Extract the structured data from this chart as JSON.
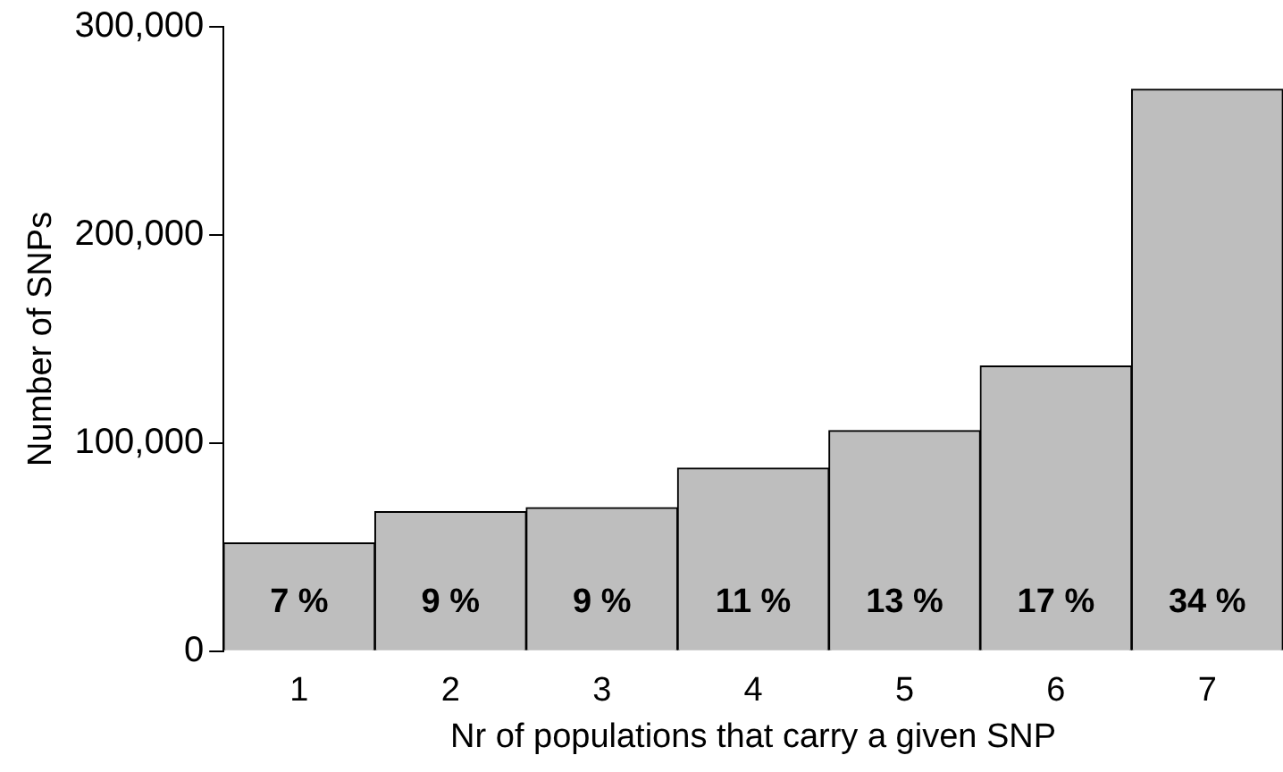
{
  "chart_data": {
    "type": "bar",
    "xlabel": "Nr of populations that carry a given SNP",
    "ylabel": "Number of SNPs",
    "categories": [
      "1",
      "2",
      "3",
      "4",
      "5",
      "6",
      "7"
    ],
    "values": [
      52000,
      67000,
      69000,
      88000,
      106000,
      137000,
      270000
    ],
    "annotations": [
      "7 %",
      "9 %",
      "9 %",
      "11 %",
      "13 %",
      "17 %",
      "34 %"
    ],
    "color": "#bebebe",
    "ylim": [
      0,
      300000
    ],
    "yticks": [
      {
        "value": 0,
        "label": "0"
      },
      {
        "value": 100000,
        "label": "100,000"
      },
      {
        "value": 200000,
        "label": "200,000"
      },
      {
        "value": 300000,
        "label": "300,000"
      }
    ],
    "grid": false,
    "legend": false
  }
}
